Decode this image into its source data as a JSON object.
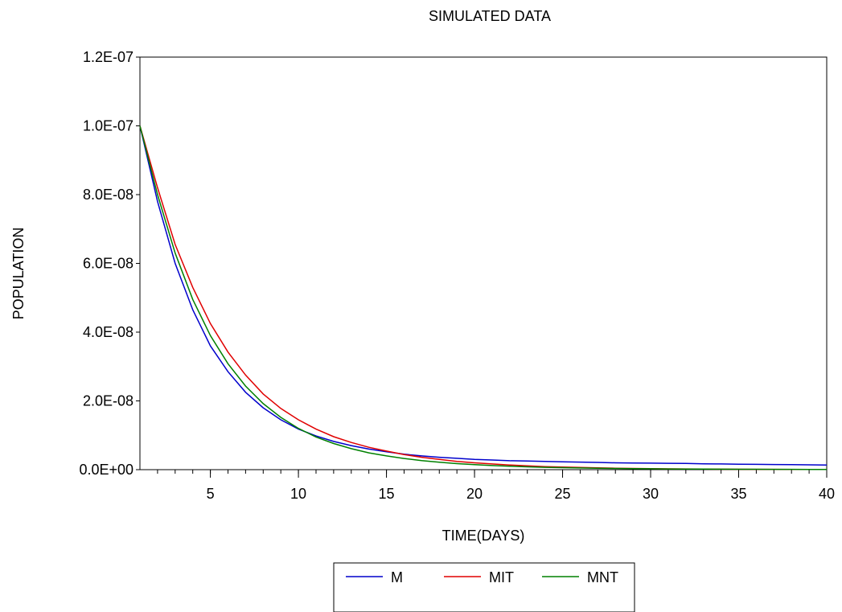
{
  "chart_data": {
    "type": "line",
    "title": "SIMULATED DATA",
    "xlabel": "TIME(DAYS)",
    "ylabel": "POPULATION",
    "xlim": [
      1,
      40
    ],
    "ylim": [
      0,
      1.2e-07
    ],
    "x_ticks": [
      5,
      10,
      15,
      20,
      25,
      30,
      35,
      40
    ],
    "x_tick_labels": [
      "5",
      "10",
      "15",
      "20",
      "25",
      "30",
      "35",
      "40"
    ],
    "y_ticks": [
      0,
      2e-08,
      4e-08,
      6e-08,
      8e-08,
      1e-07,
      1.2e-07
    ],
    "y_tick_labels": [
      "0.0E+00",
      "2.0E-08",
      "4.0E-08",
      "6.0E-08",
      "8.0E-08",
      "1.0E-07",
      "1.2E-07"
    ],
    "grid": false,
    "legend_position": "bottom-center",
    "x": [
      1,
      2,
      3,
      4,
      5,
      6,
      7,
      8,
      9,
      10,
      11,
      12,
      13,
      14,
      15,
      16,
      17,
      18,
      19,
      20,
      21,
      22,
      23,
      24,
      25,
      26,
      27,
      28,
      29,
      30,
      31,
      32,
      33,
      34,
      35,
      36,
      37,
      38,
      39,
      40
    ],
    "series": [
      {
        "name": "M",
        "color": "#0000cc",
        "values": [
          1e-07,
          7.8e-08,
          6e-08,
          4.65e-08,
          3.6e-08,
          2.85e-08,
          2.25e-08,
          1.8e-08,
          1.45e-08,
          1.18e-08,
          9.8e-09,
          8.2e-09,
          7e-09,
          6e-09,
          5.2e-09,
          4.5e-09,
          4e-09,
          3.6e-09,
          3.3e-09,
          3e-09,
          2.8e-09,
          2.6e-09,
          2.5e-09,
          2.4e-09,
          2.3e-09,
          2.2e-09,
          2.1e-09,
          2e-09,
          1.95e-09,
          1.9e-09,
          1.85e-09,
          1.8e-09,
          1.7e-09,
          1.65e-09,
          1.6e-09,
          1.55e-09,
          1.5e-09,
          1.45e-09,
          1.4e-09,
          1.35e-09
        ]
      },
      {
        "name": "MIT",
        "color": "#e00000",
        "values": [
          1e-07,
          8.2e-08,
          6.55e-08,
          5.3e-08,
          4.25e-08,
          3.42e-08,
          2.75e-08,
          2.2e-08,
          1.78e-08,
          1.45e-08,
          1.18e-08,
          9.6e-09,
          7.9e-09,
          6.5e-09,
          5.4e-09,
          4.4e-09,
          3.6e-09,
          3e-09,
          2.4e-09,
          2e-09,
          1.65e-09,
          1.35e-09,
          1.1e-09,
          9e-10,
          7.5e-10,
          6.2e-10,
          5.1e-10,
          4.2e-10,
          3.5e-10,
          2.9e-10,
          2.4e-10,
          2e-10,
          1.7e-10,
          1.4e-10,
          1.2e-10,
          1e-10,
          8.5e-11,
          7e-11,
          6e-11,
          5e-11
        ]
      },
      {
        "name": "MNT",
        "color": "#008000",
        "values": [
          1e-07,
          8e-08,
          6.3e-08,
          4.95e-08,
          3.9e-08,
          3.08e-08,
          2.43e-08,
          1.92e-08,
          1.52e-08,
          1.2e-08,
          9.5e-09,
          7.6e-09,
          6.1e-09,
          4.9e-09,
          4e-09,
          3.25e-09,
          2.65e-09,
          2.15e-09,
          1.75e-09,
          1.45e-09,
          1.2e-09,
          1e-09,
          8.3e-10,
          6.9e-10,
          5.8e-10,
          4.9e-10,
          4.1e-10,
          3.5e-10,
          3e-10,
          2.6e-10,
          2.2e-10,
          1.9e-10,
          1.65e-10,
          1.45e-10,
          1.25e-10,
          1.1e-10,
          9.5e-11,
          8.5e-11,
          7.5e-11,
          6.5e-11
        ]
      }
    ]
  }
}
